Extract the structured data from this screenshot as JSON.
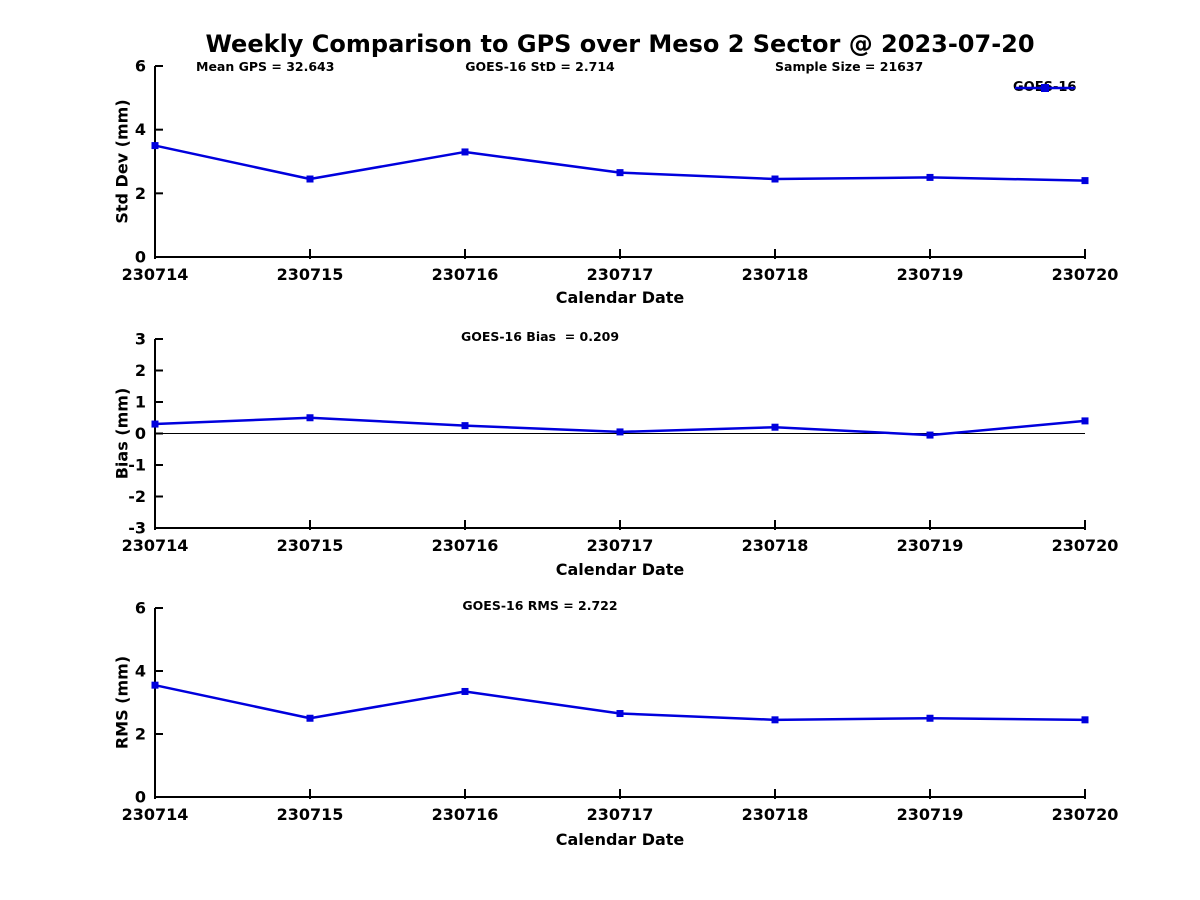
{
  "figure": {
    "title": "Weekly Comparison to GPS over Meso 2 Sector @ 2023-07-20",
    "colors": {
      "line": "#0000dd",
      "axis": "#000000",
      "text": "#000000",
      "background": "#ffffff"
    }
  },
  "chart_data": [
    {
      "type": "line",
      "subplot": "std-dev",
      "categories": [
        "230714",
        "230715",
        "230716",
        "230717",
        "230718",
        "230719",
        "230720"
      ],
      "series": [
        {
          "name": "GOES-16",
          "color": "#0000dd",
          "marker": "square",
          "values": [
            3.5,
            2.45,
            3.3,
            2.65,
            2.45,
            2.5,
            2.4
          ]
        }
      ],
      "annotations": [
        "Mean GPS = 32.643",
        "GOES-16 StD = 2.714",
        "Sample Size = 21637"
      ],
      "ylabel": "Std Dev (mm)",
      "xlabel": "Calendar Date",
      "ylim": [
        0,
        6
      ],
      "yticks": [
        0,
        2,
        4,
        6
      ],
      "grid": false,
      "zero_line": false,
      "legend": {
        "label": "GOES-16",
        "position": "upper-right"
      }
    },
    {
      "type": "line",
      "subplot": "bias",
      "categories": [
        "230714",
        "230715",
        "230716",
        "230717",
        "230718",
        "230719",
        "230720"
      ],
      "series": [
        {
          "name": "GOES-16",
          "color": "#0000dd",
          "marker": "square",
          "values": [
            0.3,
            0.5,
            0.25,
            0.05,
            0.2,
            -0.05,
            0.4
          ]
        }
      ],
      "annotations": [
        "GOES-16 Bias  = 0.209"
      ],
      "ylabel": "Bias (mm)",
      "xlabel": "Calendar Date",
      "ylim": [
        -3,
        3
      ],
      "yticks": [
        -3,
        -2,
        -1,
        0,
        1,
        2,
        3
      ],
      "grid": false,
      "zero_line": true
    },
    {
      "type": "line",
      "subplot": "rms",
      "categories": [
        "230714",
        "230715",
        "230716",
        "230717",
        "230718",
        "230719",
        "230720"
      ],
      "series": [
        {
          "name": "GOES-16",
          "color": "#0000dd",
          "marker": "square",
          "values": [
            3.55,
            2.5,
            3.35,
            2.65,
            2.45,
            2.5,
            2.45
          ]
        }
      ],
      "annotations": [
        "GOES-16 RMS = 2.722"
      ],
      "ylabel": "RMS (mm)",
      "xlabel": "Calendar Date",
      "ylim": [
        0,
        6
      ],
      "yticks": [
        0,
        2,
        4,
        6
      ],
      "grid": false,
      "zero_line": false
    }
  ]
}
